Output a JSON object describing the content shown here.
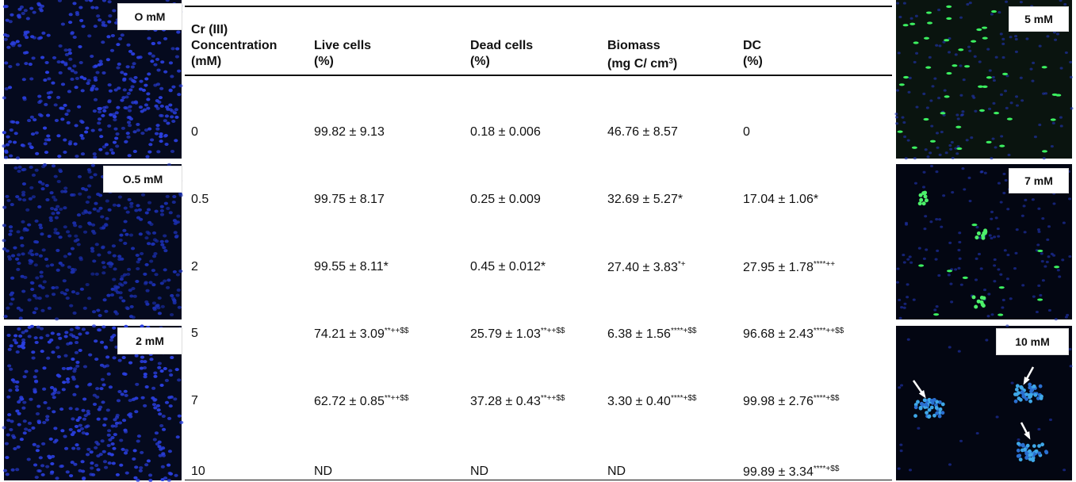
{
  "images_left": [
    "O mM",
    "O.5 mM",
    "2 mM"
  ],
  "images_right": [
    "5 mM",
    "7 mM",
    "10 mM"
  ],
  "table": {
    "header": [
      {
        "lines": [
          "Cr (III)",
          "Concentration",
          "(mM)"
        ]
      },
      {
        "lines": [
          "Live cells",
          "(%)"
        ]
      },
      {
        "lines": [
          "Dead cells",
          "(%)"
        ]
      },
      {
        "lines": [
          "Biomass"
        ],
        "unit": "(mg C/ cm",
        "unit_sup": "3",
        "unit_end": ")"
      },
      {
        "lines": [
          "DC",
          "(%)"
        ]
      }
    ],
    "rows": [
      [
        {
          "text": "0"
        },
        {
          "text": "99.82 ± 9.13"
        },
        {
          "text": "0.18 ± 0.006"
        },
        {
          "text": "46.76 ± 8.57"
        },
        {
          "text": "0"
        }
      ],
      [
        {
          "text": "0.5"
        },
        {
          "text": "99.75 ± 8.17"
        },
        {
          "text": "0.25 ± 0.009"
        },
        {
          "text": "32.69 ± 5.27*"
        },
        {
          "text": "17.04 ± 1.06*"
        }
      ],
      [
        {
          "text": "2"
        },
        {
          "text": "99.55 ± 8.11*"
        },
        {
          "text": "0.45 ± 0.012*"
        },
        {
          "text": "27.40 ± 3.83",
          "sup": "*+"
        },
        {
          "text": "27.95 ± 1.78",
          "sup": "****++"
        }
      ],
      [
        {
          "text": "5"
        },
        {
          "text": "74.21 ± 3.09",
          "sup": "**++$$"
        },
        {
          "text": "25.79 ± 1.03",
          "sup": "**++$$"
        },
        {
          "text": "6.38 ± 1.56",
          "sup": "****+$$"
        },
        {
          "text": "96.68 ± 2.43",
          "sup": "****++$$"
        }
      ],
      [
        {
          "text": "7"
        },
        {
          "text": "62.72 ± 0.85",
          "sup": "**++$$"
        },
        {
          "text": "37.28 ± 0.43",
          "sup": "**++$$"
        },
        {
          "text": "3.30 ± 0.40",
          "sup": "****+$$"
        },
        {
          "text": "99.98 ± 2.76",
          "sup": "****+$$"
        }
      ],
      [
        {
          "text": "10"
        },
        {
          "text": "ND"
        },
        {
          "text": "ND"
        },
        {
          "text": "ND"
        },
        {
          "text": "99.89 ± 3.34",
          "sup": "****+$$"
        }
      ]
    ]
  }
}
